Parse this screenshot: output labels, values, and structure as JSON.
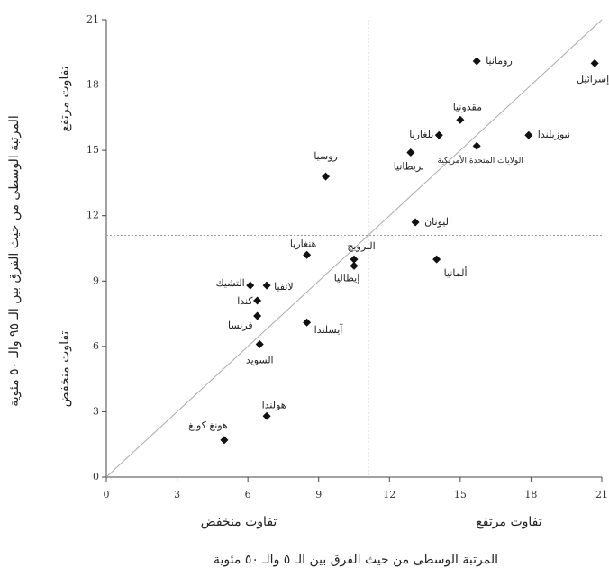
{
  "chart_data": {
    "type": "scatter",
    "x_label": "المرتبة الوسطى من حيث الفرق بين الـ ٥ والـ ٥٠ مئوية",
    "y_label": "المرتبة الوسطى من حيث الفرق بين الـ ٩٥ والـ ٥٠ مئوية",
    "annotations": {
      "y_high": "تفاوت مرتفع",
      "y_low": "تفاوت منخفض",
      "x_low": "تفاوت منخفض",
      "x_high": "تفاوت مرتفع"
    },
    "labels": [
      "رومانيا",
      "إسرائيل",
      "مقدونيا",
      "بلغاريا",
      "نيوزيلندا",
      "الولايات المتحدة الأمريكية",
      "بريطانيا",
      "روسيا",
      "اليونان",
      "ألمانيا",
      "هنغاريا",
      "النرويج",
      "إيطاليا",
      "التشيك",
      "لاتفيا",
      "كندا",
      "فرنسا",
      "آيسلندا",
      "السويد",
      "هولندا",
      "هونغ كونغ"
    ],
    "x": [
      15.7,
      20.7,
      15.0,
      14.1,
      17.9,
      15.7,
      12.9,
      9.3,
      13.1,
      14.0,
      8.5,
      10.5,
      10.5,
      6.1,
      6.8,
      6.4,
      6.4,
      8.5,
      6.5,
      6.8,
      5.0
    ],
    "values": [
      19.1,
      19.0,
      16.4,
      15.7,
      15.7,
      15.2,
      14.9,
      13.8,
      11.7,
      10.0,
      10.2,
      10.0,
      9.7,
      8.8,
      8.8,
      8.1,
      7.4,
      7.1,
      6.1,
      2.8,
      1.7
    ],
    "color": "#111111",
    "xlim": [
      0,
      21
    ],
    "ylim": [
      0,
      21
    ],
    "xticks": [
      0,
      3,
      6,
      9,
      12,
      15,
      18,
      21
    ],
    "yticks": [
      0,
      3,
      6,
      9,
      12,
      15,
      18,
      21
    ],
    "vline": 11.1,
    "hline": 11.1,
    "diagonal": true
  }
}
